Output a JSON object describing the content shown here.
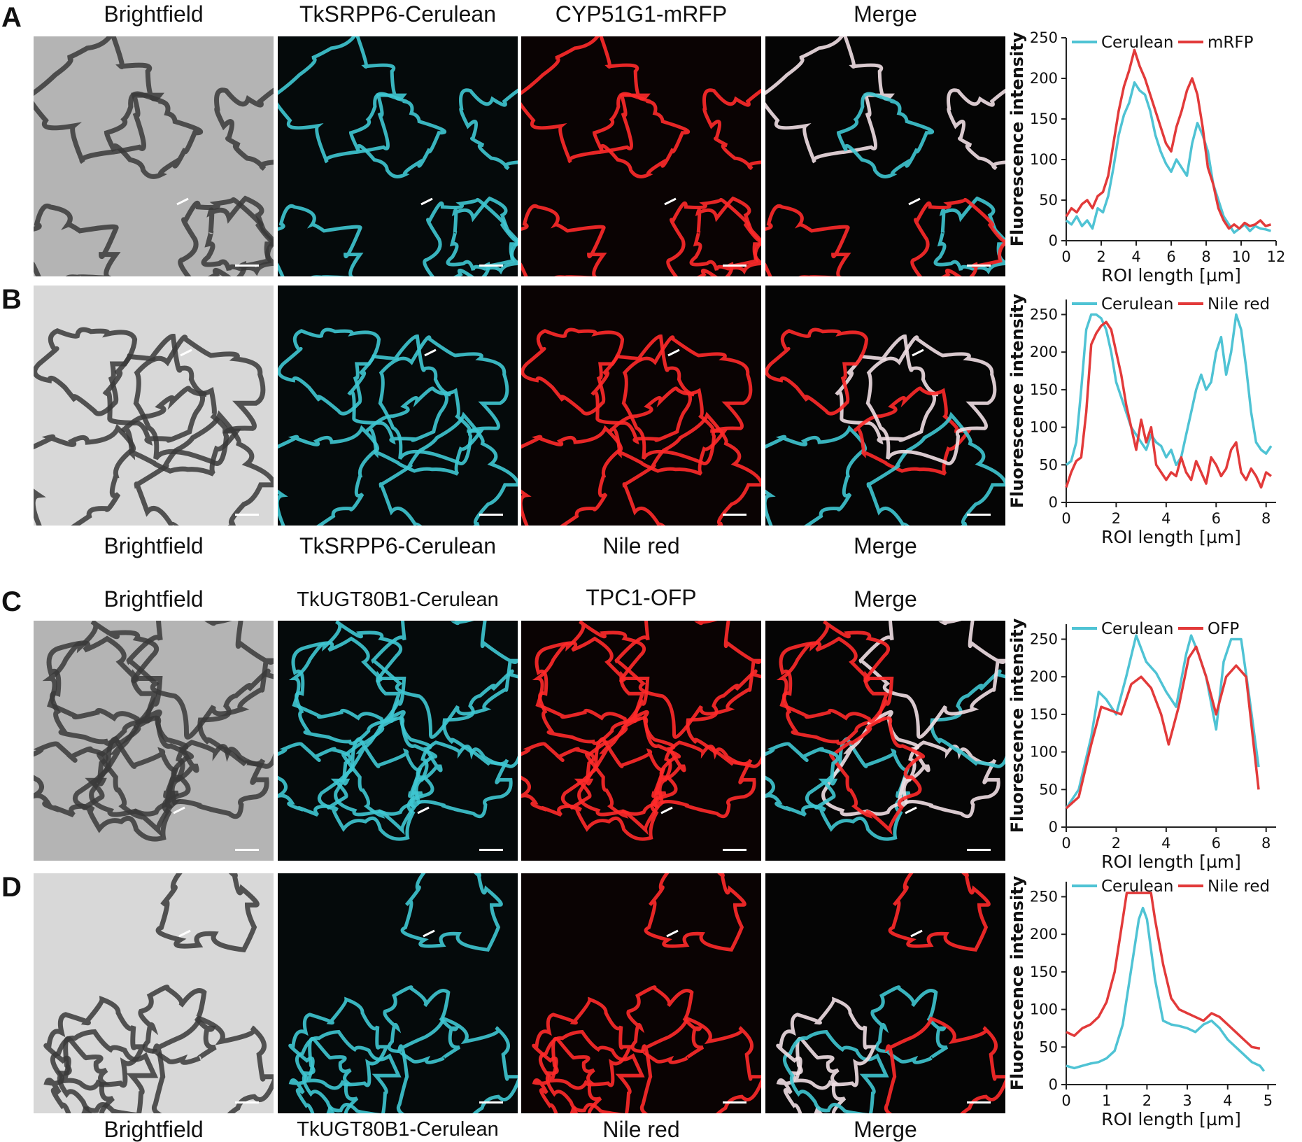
{
  "panels": [
    {
      "letter": "A",
      "labels": [
        "Brightfield",
        "TkSRPP6-Cerulean",
        "CYP51G1-mRFP",
        "Merge"
      ],
      "chart": {
        "type": "line",
        "ylabel": "Fluorescence intensity",
        "xlabel": "ROI length [µm]",
        "xlim": [
          0,
          12
        ],
        "ylim": [
          0,
          250
        ],
        "xticks": [
          0,
          2,
          4,
          6,
          8,
          10,
          12
        ],
        "yticks": [
          0,
          50,
          100,
          150,
          200,
          250
        ],
        "legend": [
          "Cerulean",
          "mRFP"
        ],
        "series": [
          {
            "name": "Cerulean",
            "color": "#4fc3d4",
            "x": [
              0,
              0.3,
              0.6,
              0.9,
              1.2,
              1.5,
              1.8,
              2.1,
              2.4,
              2.7,
              3.0,
              3.3,
              3.6,
              3.9,
              4.2,
              4.5,
              4.8,
              5.1,
              5.4,
              5.7,
              6.0,
              6.3,
              6.6,
              6.9,
              7.2,
              7.5,
              7.8,
              8.1,
              8.4,
              8.7,
              9.0,
              9.3,
              9.6,
              9.9,
              10.2,
              10.5,
              10.8,
              11.1,
              11.4,
              11.7
            ],
            "y": [
              25,
              20,
              30,
              18,
              25,
              15,
              40,
              35,
              55,
              90,
              130,
              155,
              170,
              195,
              185,
              180,
              160,
              130,
              110,
              95,
              85,
              100,
              90,
              80,
              120,
              145,
              130,
              110,
              70,
              50,
              30,
              20,
              10,
              15,
              20,
              12,
              18,
              15,
              14,
              12
            ]
          },
          {
            "name": "mRFP",
            "color": "#e23a3a",
            "x": [
              0,
              0.3,
              0.6,
              0.9,
              1.2,
              1.5,
              1.8,
              2.1,
              2.4,
              2.7,
              3.0,
              3.3,
              3.6,
              3.9,
              4.2,
              4.5,
              4.8,
              5.1,
              5.4,
              5.7,
              6.0,
              6.3,
              6.6,
              6.9,
              7.2,
              7.5,
              7.8,
              8.1,
              8.4,
              8.7,
              9.0,
              9.3,
              9.6,
              9.9,
              10.2,
              10.5,
              10.8,
              11.1,
              11.4,
              11.7
            ],
            "y": [
              30,
              40,
              35,
              45,
              50,
              40,
              55,
              60,
              80,
              120,
              160,
              190,
              210,
              235,
              215,
              200,
              180,
              160,
              140,
              120,
              110,
              140,
              160,
              185,
              200,
              180,
              140,
              90,
              70,
              40,
              25,
              15,
              20,
              15,
              22,
              18,
              20,
              25,
              18,
              20
            ]
          }
        ]
      }
    },
    {
      "letter": "B",
      "labels": [
        "Brightfield",
        "TkSRPP6-Cerulean",
        "Nile red",
        "Merge"
      ],
      "chart": {
        "type": "line",
        "ylabel": "Fluorescence intensity",
        "xlabel": "ROI length [µm]",
        "xlim": [
          0,
          8.4
        ],
        "ylim": [
          0,
          270
        ],
        "xticks": [
          0,
          2,
          4,
          6,
          8
        ],
        "yticks": [
          0,
          50,
          100,
          150,
          200,
          250
        ],
        "legend": [
          "Cerulean",
          "Nile red"
        ],
        "series": [
          {
            "name": "Cerulean",
            "color": "#4fc3d4",
            "x": [
              0,
              0.2,
              0.4,
              0.6,
              0.8,
              1.0,
              1.2,
              1.4,
              1.6,
              1.8,
              2.0,
              2.2,
              2.4,
              2.6,
              2.8,
              3.0,
              3.2,
              3.4,
              3.6,
              3.8,
              4.0,
              4.2,
              4.4,
              4.6,
              4.8,
              5.0,
              5.2,
              5.4,
              5.6,
              5.8,
              6.0,
              6.2,
              6.4,
              6.6,
              6.8,
              7.0,
              7.2,
              7.4,
              7.6,
              7.8,
              8.0,
              8.2
            ],
            "y": [
              50,
              55,
              80,
              150,
              230,
              250,
              250,
              245,
              230,
              200,
              160,
              140,
              120,
              100,
              90,
              80,
              70,
              90,
              80,
              75,
              60,
              70,
              50,
              60,
              90,
              120,
              150,
              170,
              150,
              160,
              200,
              220,
              170,
              200,
              250,
              230,
              180,
              120,
              80,
              70,
              65,
              75
            ]
          },
          {
            "name": "Nile red",
            "color": "#e23a3a",
            "x": [
              0,
              0.2,
              0.4,
              0.6,
              0.8,
              1.0,
              1.2,
              1.4,
              1.6,
              1.8,
              2.0,
              2.2,
              2.4,
              2.6,
              2.8,
              3.0,
              3.2,
              3.4,
              3.6,
              3.8,
              4.0,
              4.2,
              4.4,
              4.6,
              4.8,
              5.0,
              5.2,
              5.4,
              5.6,
              5.8,
              6.0,
              6.2,
              6.4,
              6.6,
              6.8,
              7.0,
              7.2,
              7.4,
              7.6,
              7.8,
              8.0,
              8.2
            ],
            "y": [
              20,
              40,
              55,
              60,
              120,
              210,
              225,
              235,
              240,
              230,
              200,
              170,
              130,
              100,
              70,
              110,
              80,
              100,
              50,
              40,
              30,
              40,
              35,
              60,
              40,
              30,
              55,
              40,
              25,
              60,
              50,
              35,
              45,
              70,
              80,
              40,
              30,
              45,
              35,
              20,
              40,
              35
            ]
          }
        ]
      }
    },
    {
      "letter": "C",
      "labels": [
        "Brightfield",
        "TkUGT80B1-Cerulean",
        "TPC1-OFP",
        "Merge"
      ],
      "chart": {
        "type": "line",
        "ylabel": "Fluorescence intensity",
        "xlabel": "ROI length [µm]",
        "xlim": [
          0,
          8.4
        ],
        "ylim": [
          0,
          270
        ],
        "xticks": [
          0,
          2,
          4,
          6,
          8
        ],
        "yticks": [
          0,
          50,
          100,
          150,
          200,
          250
        ],
        "legend": [
          "Cerulean",
          "OFP"
        ],
        "series": [
          {
            "name": "Cerulean",
            "color": "#4fc3d4",
            "x": [
              0,
              0.5,
              1.0,
              1.3,
              1.6,
              2.0,
              2.4,
              2.8,
              3.2,
              3.6,
              4.0,
              4.4,
              4.8,
              5.0,
              5.3,
              5.6,
              6.0,
              6.3,
              6.6,
              7.0,
              7.3,
              7.7
            ],
            "y": [
              25,
              50,
              120,
              180,
              170,
              150,
              200,
              255,
              220,
              205,
              180,
              160,
              230,
              255,
              230,
              200,
              130,
              220,
              250,
              250,
              180,
              80
            ]
          },
          {
            "name": "OFP",
            "color": "#e23a3a",
            "x": [
              0,
              0.5,
              1.0,
              1.4,
              1.8,
              2.2,
              2.6,
              3.0,
              3.4,
              3.8,
              4.1,
              4.5,
              4.9,
              5.2,
              5.6,
              6.0,
              6.4,
              6.8,
              7.2,
              7.7
            ],
            "y": [
              25,
              40,
              110,
              160,
              155,
              150,
              190,
              200,
              185,
              150,
              110,
              160,
              225,
              240,
              200,
              150,
              200,
              215,
              200,
              50
            ]
          }
        ]
      }
    },
    {
      "letter": "D",
      "labels": [
        "Brightfield",
        "TkUGT80B1-Cerulean",
        "Nile red",
        "Merge"
      ],
      "chart": {
        "type": "line",
        "ylabel": "Fluorescence intensity",
        "xlabel": "ROI length [µm]",
        "xlim": [
          0,
          5.2
        ],
        "ylim": [
          0,
          270
        ],
        "xticks": [
          0,
          1,
          2,
          3,
          4,
          5
        ],
        "yticks": [
          0,
          50,
          100,
          150,
          200,
          250
        ],
        "legend": [
          "Cerulean",
          "Nile red"
        ],
        "series": [
          {
            "name": "Cerulean",
            "color": "#4fc3d4",
            "x": [
              0,
              0.2,
              0.4,
              0.6,
              0.8,
              1.0,
              1.2,
              1.4,
              1.6,
              1.8,
              1.9,
              2.0,
              2.2,
              2.4,
              2.6,
              2.8,
              3.0,
              3.2,
              3.4,
              3.6,
              3.8,
              4.0,
              4.2,
              4.4,
              4.6,
              4.8,
              4.9
            ],
            "y": [
              25,
              22,
              25,
              28,
              30,
              35,
              45,
              80,
              150,
              220,
              235,
              220,
              140,
              85,
              80,
              78,
              75,
              70,
              80,
              85,
              75,
              60,
              50,
              40,
              30,
              25,
              18
            ]
          },
          {
            "name": "Nile red",
            "color": "#e23a3a",
            "x": [
              0,
              0.2,
              0.4,
              0.6,
              0.8,
              1.0,
              1.2,
              1.4,
              1.5,
              1.6,
              1.8,
              2.0,
              2.1,
              2.2,
              2.4,
              2.6,
              2.8,
              3.0,
              3.2,
              3.4,
              3.6,
              3.8,
              4.0,
              4.2,
              4.4,
              4.6,
              4.8
            ],
            "y": [
              70,
              65,
              75,
              80,
              90,
              110,
              150,
              220,
              255,
              255,
              255,
              255,
              255,
              220,
              160,
              115,
              100,
              95,
              90,
              85,
              95,
              90,
              80,
              70,
              60,
              50,
              48
            ]
          }
        ]
      }
    }
  ],
  "channel_colors": {
    "brightfield": "#9e9e9e",
    "cerulean": "#3fc6d2",
    "red": "#ff2a2a",
    "merge_overlap": "#f1dfe4"
  }
}
